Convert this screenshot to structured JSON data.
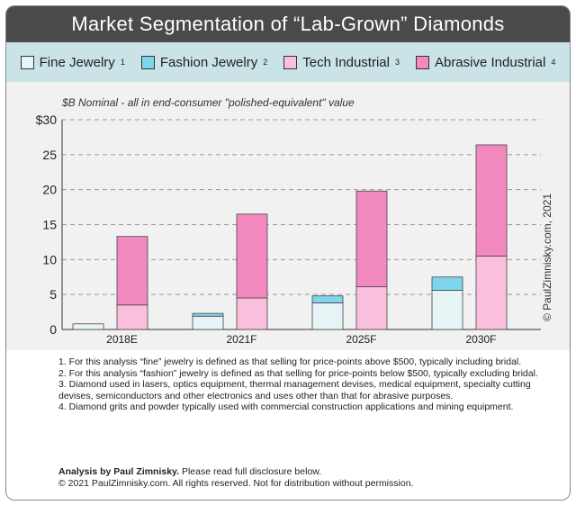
{
  "title": "Market Segmentation of “Lab-Grown” Diamonds",
  "legend": [
    {
      "label": "Fine Jewelry",
      "sup": "1",
      "color": "#e6f4f6"
    },
    {
      "label": "Fashion Jewelry",
      "sup": "2",
      "color": "#7fd6ec"
    },
    {
      "label": "Tech Industrial",
      "sup": "3",
      "color": "#f9bfdc"
    },
    {
      "label": "Abrasive Industrial",
      "sup": "4",
      "color": "#f28ac0"
    }
  ],
  "subtitle": "$B Nominal - all in end-consumer \"polished-equivalent\" value",
  "watermark": "© PaulZimnisky.com, 2021",
  "chart_data": {
    "type": "bar",
    "stacked_groups": true,
    "categories": [
      "2018E",
      "2021F",
      "2025F",
      "2030F"
    ],
    "ylim": [
      0,
      30
    ],
    "yticks": [
      "0",
      "5",
      "10",
      "15",
      "20",
      "25",
      "$30"
    ],
    "grid": true,
    "series": [
      {
        "name": "Fine Jewelry",
        "values": [
          0.8,
          1.9,
          3.8,
          5.6
        ],
        "group": "jewelry"
      },
      {
        "name": "Fashion Jewelry",
        "values": [
          0.0,
          0.4,
          1.0,
          1.9
        ],
        "group": "jewelry"
      },
      {
        "name": "Tech Industrial",
        "values": [
          3.5,
          4.5,
          6.1,
          10.5
        ],
        "group": "industrial"
      },
      {
        "name": "Abrasive Industrial",
        "values": [
          9.8,
          12.0,
          13.7,
          15.9
        ],
        "group": "industrial"
      }
    ]
  },
  "notes": [
    "1. For this analysis “fine” jewelry is defined as that selling for price-points above $500, typically including bridal.",
    "2. For this analysis “fashion” jewelry is defined as that selling for price-points below $500, typically excluding bridal.",
    "3. Diamond used in lasers, optics equipment, thermal management devises, medical equipment, specialty cutting devises, semiconductors and other electronics and uses other than that for abrasive purposes.",
    "4. Diamond grits and powder typically used with commercial construction applications and mining equipment."
  ],
  "credit": {
    "bold": "Analysis by Paul Zimnisky.",
    "rest": " Please read full disclosure below.",
    "line2": "© 2021 PaulZimnisky.com. All rights reserved. Not for distribution without permission."
  }
}
